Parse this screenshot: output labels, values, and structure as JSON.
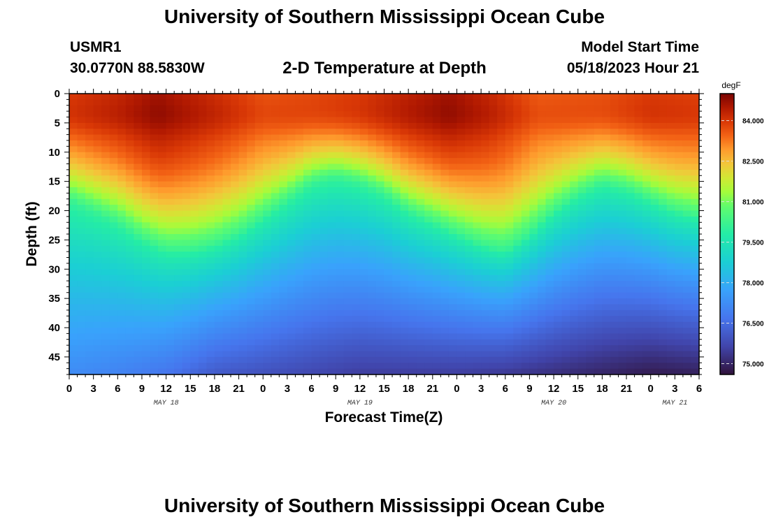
{
  "header": {
    "title": "University of Southern Mississippi Ocean Cube",
    "station_id": "USMR1",
    "station_coords": "30.0770N  88.5830W",
    "subtitle": "2-D Temperature at Depth",
    "model_label": "Model Start Time",
    "model_time": "05/18/2023 Hour 21"
  },
  "footer": {
    "title": "University of Southern Mississippi Ocean Cube"
  },
  "chart_data": {
    "type": "heatmap",
    "title": "2-D Temperature at Depth",
    "xlabel": "Forecast Time(Z)",
    "ylabel": "Depth (ft)",
    "colorbar_unit": "degF",
    "colorbar_ticks": [
      "84.000",
      "82.500",
      "81.000",
      "79.500",
      "78.000",
      "76.500",
      "75.000"
    ],
    "colorbar_values": [
      84.0,
      82.5,
      81.0,
      79.5,
      78.0,
      76.5,
      75.0
    ],
    "colorbar_range": [
      74.6,
      85.0
    ],
    "xlim_hours": [
      0,
      78
    ],
    "ylim_ft": [
      0,
      48
    ],
    "x_tick_labels": [
      "0",
      "3",
      "6",
      "9",
      "12",
      "15",
      "18",
      "21",
      "0",
      "3",
      "6",
      "9",
      "12",
      "15",
      "18",
      "21",
      "0",
      "3",
      "6",
      "9",
      "12",
      "15",
      "18",
      "21",
      "0",
      "3",
      "6"
    ],
    "y_tick_labels": [
      "0",
      "5",
      "10",
      "15",
      "20",
      "25",
      "30",
      "35",
      "40",
      "45"
    ],
    "date_labels": [
      {
        "label": "MAY 18",
        "hour": 12
      },
      {
        "label": "MAY 19",
        "hour": 36
      },
      {
        "label": "MAY 20",
        "hour": 60
      },
      {
        "label": "MAY 21",
        "hour": 75
      }
    ],
    "thermocline_depth_ft": {
      "hours": [
        0,
        3,
        6,
        9,
        12,
        15,
        18,
        21,
        24,
        27,
        30,
        33,
        36,
        39,
        42,
        45,
        48,
        51,
        54,
        57,
        60,
        63,
        66,
        69,
        72,
        75,
        78
      ],
      "depths": [
        18,
        20,
        22,
        25,
        27,
        27,
        26,
        24,
        21,
        18,
        15,
        14,
        15,
        17,
        20,
        22,
        24,
        26,
        27,
        24,
        20,
        17,
        15,
        16,
        18,
        20,
        21
      ]
    },
    "surface_max_degF": {
      "hours": [
        0,
        6,
        11,
        18,
        24,
        30,
        36,
        42,
        47,
        52,
        58,
        66,
        72,
        78
      ],
      "temps": [
        83.9,
        84.2,
        84.6,
        84.1,
        83.6,
        83.7,
        83.9,
        84.3,
        84.6,
        84.2,
        83.5,
        83.6,
        83.9,
        83.8
      ]
    },
    "bottom_temp_degF": {
      "hours": [
        0,
        6,
        12,
        18,
        24,
        30,
        36,
        42,
        48,
        54,
        60,
        66,
        72,
        78
      ],
      "temps": [
        77.2,
        77.0,
        76.7,
        76.1,
        75.9,
        75.7,
        75.5,
        75.5,
        75.5,
        75.4,
        75.2,
        75.0,
        74.8,
        74.9
      ]
    }
  }
}
